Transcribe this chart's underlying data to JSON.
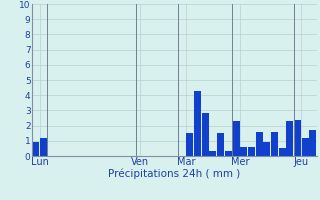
{
  "values": [
    0.9,
    1.2,
    0,
    0,
    0,
    0,
    0,
    0,
    0,
    0,
    0,
    0,
    0,
    0,
    0,
    0,
    0,
    0,
    0,
    0,
    1.5,
    4.3,
    2.8,
    0.3,
    1.5,
    0.3,
    2.3,
    0.6,
    0.6,
    1.6,
    0.9,
    1.6,
    0.5,
    2.3,
    2.4,
    1.2,
    1.7
  ],
  "day_labels": [
    "Lun",
    "Ven",
    "Mar",
    "Mer",
    "Jeu"
  ],
  "day_positions": [
    0.5,
    13.5,
    19.5,
    26.5,
    34.5
  ],
  "day_sep_positions": [
    1.5,
    13.0,
    18.5,
    25.5,
    33.5
  ],
  "xlabel": "Précipitations 24h ( mm )",
  "ylim": [
    0,
    10
  ],
  "yticks": [
    0,
    1,
    2,
    3,
    4,
    5,
    6,
    7,
    8,
    9,
    10
  ],
  "bar_color": "#1040cc",
  "bg_color": "#d8f0ee",
  "grid_color": "#b8d0ce",
  "sep_color": "#708090",
  "axis_color": "#4060a0",
  "label_color": "#2040a0",
  "spine_color": "#8090a0"
}
